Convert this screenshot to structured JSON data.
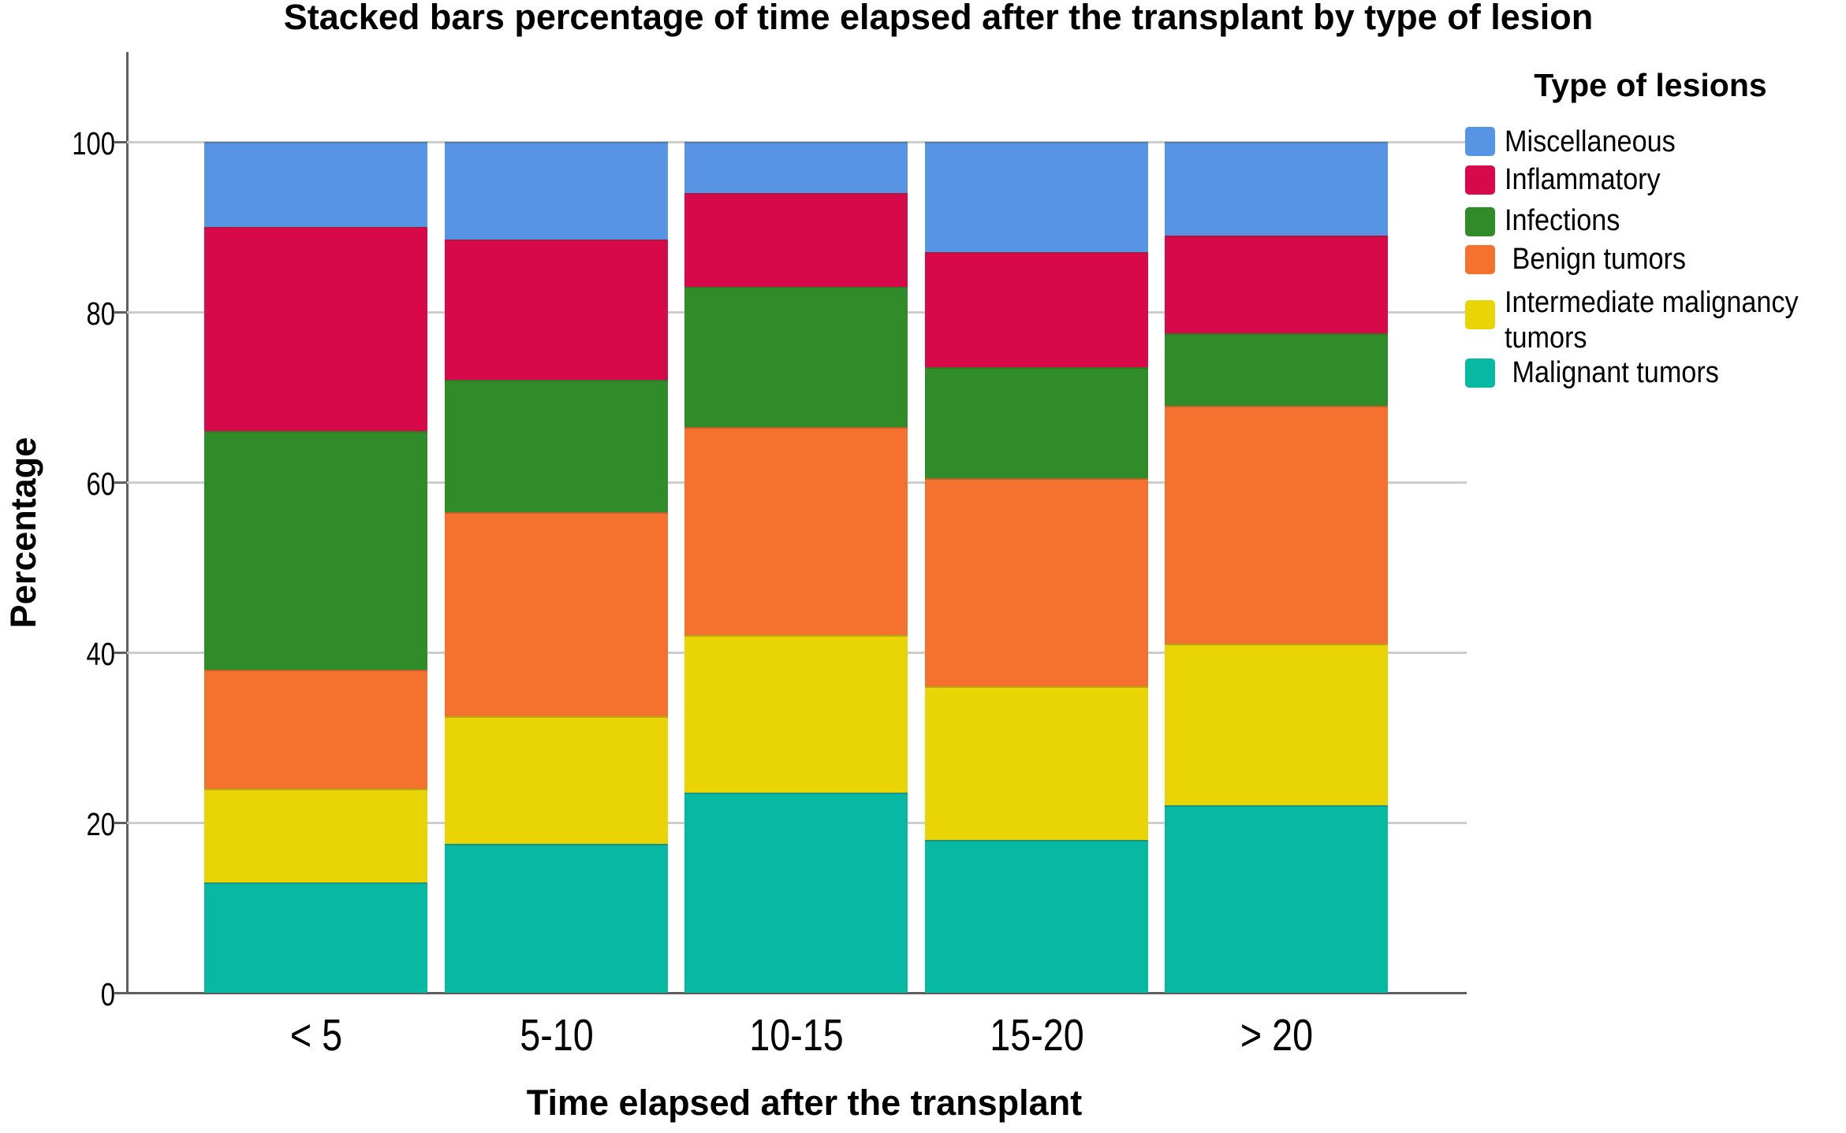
{
  "chart_title": "Stacked bars percentage of time elapsed after the transplant by type of lesion",
  "chart_data": {
    "type": "bar",
    "stacked": true,
    "title": "Stacked bars percentage of time elapsed after the transplant by type of lesion",
    "xlabel": "Time elapsed after the transplant",
    "ylabel": "Percentage",
    "ylim": [
      0,
      100
    ],
    "yticks": [
      0,
      20,
      40,
      60,
      80,
      100
    ],
    "grid": true,
    "legend_position": "right",
    "legend_title": "Type of lesions",
    "categories": [
      "< 5",
      "5-10",
      "10-15",
      "15-20",
      "> 20"
    ],
    "series": [
      {
        "name": "Malignant tumors",
        "color": "#07B9A3",
        "values": [
          13,
          17.5,
          23.5,
          18,
          22
        ]
      },
      {
        "name": "Intermediate malignancy tumors",
        "color": "#E9D506",
        "values": [
          11,
          15,
          18.5,
          18,
          19
        ]
      },
      {
        "name": "Benign tumors",
        "color": "#F4722E",
        "values": [
          14,
          24,
          24.5,
          24.5,
          28
        ]
      },
      {
        "name": "Infections",
        "color": "#2F8C28",
        "values": [
          28,
          15.5,
          16.5,
          13,
          8.5
        ]
      },
      {
        "name": "Inflammatory",
        "color": "#D7094A",
        "values": [
          24,
          16.5,
          11,
          13.5,
          11.5
        ]
      },
      {
        "name": "Miscellaneous",
        "color": "#5794E4",
        "values": [
          10,
          11.5,
          6,
          13,
          11
        ]
      }
    ]
  },
  "axes": {
    "x_title": "Time elapsed after the transplant",
    "y_title": "Percentage",
    "y_tick_labels": [
      "0",
      "20",
      "40",
      "60",
      "80",
      "100"
    ]
  },
  "legend": {
    "title": "Type of lesions",
    "items": [
      {
        "label": "Miscellaneous",
        "color": "#5794E4"
      },
      {
        "label": "Inflammatory",
        "color": "#D7094A"
      },
      {
        "label": "Infections",
        "color": "#2F8C28"
      },
      {
        "label": " Benign tumors",
        "color": "#F4722E"
      },
      {
        "label": "Intermediate malignancy\ntumors",
        "color": "#E9D506"
      },
      {
        "label": " Malignant tumors",
        "color": "#07B9A3"
      }
    ]
  },
  "colors": {
    "background": "#FFFFFF",
    "text": "#000000",
    "gridline": "#CCCCCC",
    "axis": "#5E5E5E"
  }
}
